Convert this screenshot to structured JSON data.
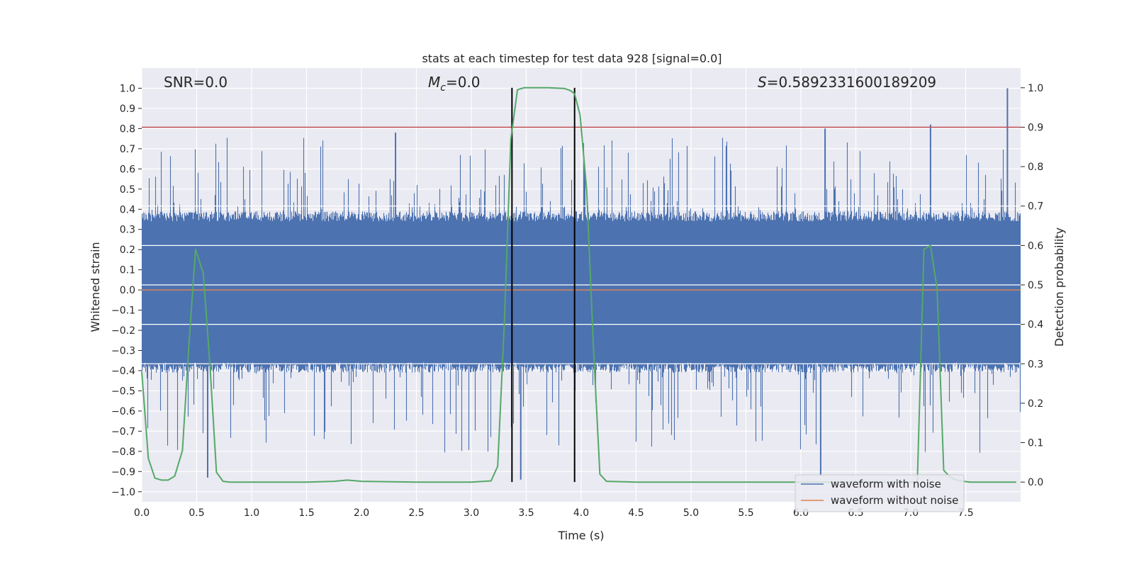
{
  "chart_data": {
    "type": "line",
    "title": "stats at each timestep for test data 928 [signal=0.0]",
    "xlabel": "Time (s)",
    "ylabel": "Whitened strain",
    "y2label": "Detection probability",
    "xlim": [
      0.0,
      8.0
    ],
    "ylim": [
      -1.05,
      1.1
    ],
    "y2lim": [
      -0.05,
      1.05
    ],
    "x_ticks": [
      "0.0",
      "0.5",
      "1.0",
      "1.5",
      "2.0",
      "2.5",
      "3.0",
      "3.5",
      "4.0",
      "4.5",
      "5.0",
      "5.5",
      "6.0",
      "6.5",
      "7.0",
      "7.5"
    ],
    "y_ticks": [
      "-1.0",
      "-0.9",
      "-0.8",
      "-0.7",
      "-0.6",
      "-0.5",
      "-0.4",
      "-0.3",
      "-0.2",
      "-0.1",
      "0.0",
      "0.1",
      "0.2",
      "0.3",
      "0.4",
      "0.5",
      "0.6",
      "0.7",
      "0.8",
      "0.9",
      "1.0"
    ],
    "y2_ticks": [
      "0.0",
      "0.1",
      "0.2",
      "0.3",
      "0.4",
      "0.5",
      "0.6",
      "0.7",
      "0.8",
      "0.9",
      "1.0"
    ],
    "annotations": {
      "snr": "SNR=0.0",
      "mc_symbol": "M",
      "mc_sub": "c",
      "mc_value": "=0.0",
      "s_symbol": "S",
      "s_value": "=0.5892331600189209"
    },
    "threshold_line": {
      "y2": 0.9,
      "color": "#c44e52"
    },
    "vertical_lines": [
      3.37,
      3.94
    ],
    "colors": {
      "noise": "#4c72b0",
      "clean": "#dd8452",
      "prob": "#55a868",
      "plot_bg": "#eaeaf2",
      "grid": "#ffffff"
    },
    "series": [
      {
        "name": "waveform with noise",
        "color": "#4c72b0",
        "noise_band": [
          -0.36,
          0.34
        ],
        "spikes_upper": [
          0.78,
          0.8,
          0.82,
          1.0
        ],
        "spikes_lower": [
          -0.93,
          -0.92,
          -0.94
        ]
      },
      {
        "name": "waveform without noise",
        "color": "#dd8452",
        "constant_y": 0.0
      },
      {
        "name": "detection probability",
        "color": "#55a868",
        "axis": "right",
        "x": [
          0.0,
          0.06,
          0.12,
          0.18,
          0.24,
          0.3,
          0.37,
          0.43,
          0.49,
          0.56,
          0.62,
          0.68,
          0.74,
          0.8,
          1.0,
          1.5,
          1.75,
          1.87,
          2.0,
          2.5,
          3.0,
          3.18,
          3.24,
          3.3,
          3.36,
          3.42,
          3.48,
          3.55,
          3.7,
          3.85,
          3.9,
          3.94,
          3.99,
          4.05,
          4.11,
          4.17,
          4.23,
          4.5,
          5.0,
          5.5,
          6.0,
          6.5,
          7.0,
          7.06,
          7.12,
          7.18,
          7.24,
          7.3,
          7.36,
          7.42,
          7.48,
          7.54,
          7.6,
          7.66,
          7.72,
          7.78,
          7.84,
          7.9,
          7.96
        ],
        "y": [
          0.28,
          0.06,
          0.01,
          0.005,
          0.005,
          0.015,
          0.08,
          0.35,
          0.59,
          0.53,
          0.3,
          0.025,
          0.002,
          0.0,
          0.0,
          0.0,
          0.002,
          0.005,
          0.002,
          0.0,
          0.0,
          0.003,
          0.04,
          0.4,
          0.87,
          0.995,
          1.0,
          1.0,
          1.0,
          0.998,
          0.993,
          0.985,
          0.93,
          0.74,
          0.35,
          0.02,
          0.002,
          0.0,
          0.0,
          0.0,
          0.0,
          0.0,
          0.0,
          0.0,
          0.59,
          0.6,
          0.49,
          0.03,
          0.012,
          0.005,
          0.002,
          0.0,
          0.0,
          0.0,
          0.0,
          0.0,
          0.0,
          0.0,
          0.0
        ]
      }
    ],
    "legend": {
      "position": "bottom-right",
      "entries": [
        "waveform with noise",
        "waveform without noise"
      ]
    }
  }
}
